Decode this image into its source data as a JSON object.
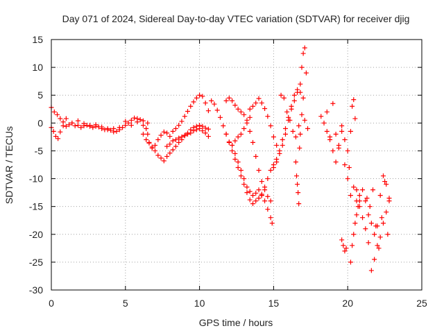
{
  "chart_data": {
    "type": "scatter",
    "title": "Day 071 of 2024, Sidereal Day-to-day VTEC variation (SDTVAR) for receiver djig",
    "xlabel": "GPS time / hours",
    "ylabel": "SDTVAR / TECUs",
    "xlim": [
      0,
      25
    ],
    "ylim": [
      -30,
      15
    ],
    "x_ticks": [
      "0",
      "5",
      "10",
      "15",
      "20",
      "25"
    ],
    "y_ticks": [
      "15",
      "10",
      "5",
      "0",
      "-5",
      "-10",
      "-15",
      "-20",
      "-25",
      "-30"
    ],
    "grid": true,
    "legend": "none",
    "marker": "+",
    "color": "#ff0000",
    "series": [
      {
        "x": [
          0.0,
          0.2,
          0.4,
          0.6,
          0.8,
          1.0,
          1.2,
          1.4,
          1.6,
          1.8,
          2.0,
          2.2,
          2.4,
          2.6,
          2.8,
          3.0,
          3.2,
          3.4,
          3.6,
          3.8,
          4.0,
          4.2,
          4.4,
          4.6,
          4.8,
          5.0,
          5.2,
          5.4,
          5.6,
          5.8,
          6.0,
          6.2,
          6.4,
          6.5,
          6.6,
          6.8,
          7.0,
          7.2,
          7.4,
          7.6,
          7.8,
          8.0,
          8.2,
          8.4,
          8.6,
          8.8,
          9.0,
          9.2,
          9.4,
          9.6,
          9.8,
          10.0,
          10.2,
          10.4,
          10.6
        ],
        "y": [
          2.8,
          2.0,
          1.5,
          0.8,
          0.2,
          -0.6,
          -0.3,
          0.0,
          -0.5,
          -0.4,
          -0.8,
          -0.5,
          -0.4,
          -0.6,
          -0.8,
          -0.6,
          -0.7,
          -1.0,
          -1.2,
          -1.0,
          -1.3,
          -1.6,
          -1.5,
          -1.2,
          -0.8,
          -0.4,
          0.0,
          0.5,
          0.9,
          0.8,
          0.6,
          0.4,
          -1.0,
          -2.0,
          -3.5,
          -4.5,
          -4.0,
          -3.0,
          -2.2,
          -1.6,
          -1.8,
          -2.4,
          -1.5,
          -1.0,
          -0.4,
          0.3,
          1.2,
          2.1,
          3.0,
          3.8,
          4.5,
          5.0,
          4.8,
          3.6,
          2.2
        ]
      },
      {
        "x": [
          0.0,
          0.15,
          0.3,
          0.45,
          0.6,
          0.8,
          1.0,
          1.4,
          1.8,
          2.2,
          2.6,
          3.0,
          3.4,
          3.8,
          4.2,
          4.6,
          5.0,
          5.4,
          5.8,
          6.2,
          6.5
        ],
        "y": [
          -0.8,
          -1.5,
          -2.4,
          -2.8,
          -1.6,
          -0.5,
          0.8,
          0.0,
          0.4,
          -0.1,
          -0.4,
          -0.3,
          -0.7,
          -1.2,
          -1.0,
          -0.8,
          0.3,
          -0.4,
          0.2,
          -0.4,
          0.0
        ]
      },
      {
        "x": [
          6.2,
          6.4,
          6.6,
          6.8,
          7.0,
          7.2,
          7.4,
          7.6,
          7.8,
          8.0,
          8.2,
          8.4,
          8.6,
          8.8,
          9.0,
          9.2,
          9.4,
          9.6,
          9.8,
          10.0,
          10.2,
          10.4,
          10.6
        ],
        "y": [
          -2.0,
          -3.0,
          -3.6,
          -4.3,
          -5.0,
          -5.8,
          -6.3,
          -6.8,
          -6.0,
          -5.4,
          -4.8,
          -4.2,
          -3.5,
          -3.0,
          -2.3,
          -1.8,
          -1.2,
          -0.8,
          -0.6,
          -0.4,
          -0.6,
          -0.9,
          -1.1
        ]
      },
      {
        "x": [
          7.8,
          8.0,
          8.2,
          8.4,
          8.6,
          8.8,
          9.0,
          9.2,
          9.4,
          9.6,
          9.8,
          10.0,
          10.2,
          10.4,
          10.6
        ],
        "y": [
          -4.2,
          -3.8,
          -3.2,
          -3.0,
          -2.7,
          -2.5,
          -2.2,
          -2.0,
          -1.8,
          -1.4,
          -1.2,
          -1.0,
          -1.4,
          -1.8,
          -2.4
        ]
      },
      {
        "x": [
          10.8,
          11.0,
          11.2,
          11.4,
          11.6,
          11.8,
          12.0,
          12.2,
          12.4,
          12.6,
          12.8,
          13.0,
          13.2,
          13.4,
          13.6,
          13.8,
          14.0,
          14.2,
          14.4,
          14.6,
          14.8,
          14.9
        ],
        "y": [
          4.0,
          3.4,
          2.3,
          1.0,
          -0.5,
          -2.0,
          -3.4,
          -4.0,
          -5.5,
          -7.0,
          -8.5,
          -10.0,
          -11.5,
          -12.3,
          -13.0,
          -12.6,
          -12.0,
          -12.8,
          -14.0,
          -15.5,
          -17.0,
          -18.0
        ]
      },
      {
        "x": [
          11.8,
          12.0,
          12.2,
          12.4,
          12.6,
          12.8,
          13.0,
          13.2,
          13.4,
          13.6,
          13.8,
          14.0,
          14.2
        ],
        "y": [
          -2.0,
          -3.5,
          -5.0,
          -6.5,
          -8.0,
          -9.5,
          -11.0,
          -12.5,
          -13.8,
          -14.5,
          -14.0,
          -13.5,
          -13.0
        ]
      },
      {
        "x": [
          11.8,
          12.0,
          12.2,
          12.4,
          12.6,
          12.8,
          13.0,
          13.2,
          13.4,
          13.6,
          13.8,
          14.0,
          14.2,
          14.4,
          14.6,
          14.8
        ],
        "y": [
          4.0,
          4.5,
          4.0,
          3.2,
          2.5,
          2.0,
          1.5,
          0.5,
          -1.5,
          -3.5,
          -6.0,
          -8.5,
          -10.5,
          -12.0,
          -13.2,
          -14.0
        ]
      },
      {
        "x": [
          12.2,
          12.4,
          12.6,
          12.8,
          13.0,
          13.2,
          13.4
        ],
        "y": [
          -4.0,
          -3.2,
          -2.5,
          -2.0,
          -1.0,
          0.0,
          1.0
        ]
      },
      {
        "x": [
          13.4,
          13.6,
          13.8,
          14.0,
          14.2,
          14.4,
          14.6,
          14.8,
          15.0,
          15.2
        ],
        "y": [
          2.5,
          3.0,
          3.6,
          4.4,
          3.6,
          2.6,
          1.2,
          -0.5,
          -2.5,
          -4.0
        ]
      },
      {
        "x": [
          14.2,
          14.4,
          14.6,
          14.8,
          15.0,
          15.2,
          15.4,
          15.6,
          15.8,
          16.0,
          16.2,
          16.4,
          16.6,
          16.8,
          17.0
        ],
        "y": [
          -13.0,
          -11.5,
          -10.0,
          -8.5,
          -7.5,
          -6.5,
          -5.0,
          -3.0,
          -1.0,
          1.0,
          3.0,
          5.0,
          6.0,
          5.5,
          4.5
        ]
      },
      {
        "x": [
          15.0,
          15.2,
          15.4,
          15.6,
          15.8,
          16.0,
          16.2,
          16.4,
          16.6,
          16.8,
          16.9,
          17.0,
          17.1,
          17.2
        ],
        "y": [
          -8.0,
          -7.0,
          -5.5,
          -4.0,
          -2.0,
          0.5,
          2.5,
          4.0,
          5.5,
          7.0,
          10.0,
          12.5,
          13.5,
          9.0
        ]
      },
      {
        "x": [
          15.5,
          15.7,
          15.9,
          16.1,
          16.3,
          16.5,
          16.7,
          16.9,
          17.1,
          17.3
        ],
        "y": [
          5.0,
          4.5,
          2.0,
          0.5,
          -1.5,
          -2.5,
          -0.5,
          1.5,
          0.5,
          -1.0
        ]
      },
      {
        "x": [
          16.5,
          16.55,
          16.6,
          16.65,
          16.7,
          16.75,
          16.8
        ],
        "y": [
          -7.0,
          -9.5,
          -11.0,
          -12.5,
          -14.5,
          -4.5,
          -2.0
        ]
      },
      {
        "x": [
          18.2,
          18.4,
          18.6,
          18.8,
          19.0,
          19.2,
          19.4,
          19.6,
          19.8,
          20.0,
          20.1,
          20.2,
          20.3,
          20.4,
          20.5,
          20.6,
          20.8
        ],
        "y": [
          1.2,
          0.0,
          -1.5,
          -3.0,
          3.5,
          -2.0,
          -4.5,
          -0.5,
          -3.0,
          -5.0,
          -8.0,
          -1.5,
          3.0,
          4.2,
          0.8,
          -12.0,
          -13.0
        ]
      },
      {
        "x": [
          18.6,
          18.8,
          19.0,
          19.2,
          19.4,
          19.6,
          19.8,
          20.0,
          20.2,
          20.4,
          20.6
        ],
        "y": [
          2.0,
          -2.5,
          -5.0,
          -7.0,
          -4.0,
          -1.5,
          -7.5,
          -10.0,
          -13.0,
          -11.5,
          -14.0
        ]
      },
      {
        "x": [
          19.6,
          19.7,
          19.8,
          19.9
        ],
        "y": [
          -21.0,
          -22.0,
          -23.0,
          -22.5
        ]
      },
      {
        "x": [
          20.2,
          20.3,
          20.4,
          20.5,
          20.6,
          20.7,
          20.8
        ],
        "y": [
          -25.0,
          -22.0,
          -20.0,
          -18.0,
          -16.5,
          -15.0,
          -14.0
        ]
      },
      {
        "x": [
          20.8,
          21.0,
          21.2,
          21.4,
          21.6,
          21.8,
          22.0,
          22.2,
          22.4,
          22.6,
          22.8
        ],
        "y": [
          -15.0,
          -17.0,
          -19.0,
          -21.5,
          -26.5,
          -24.5,
          -22.0,
          -20.5,
          -18.0,
          -16.0,
          -14.0
        ]
      },
      {
        "x": [
          21.0,
          21.2,
          21.4,
          21.6,
          21.8,
          22.0,
          22.2,
          22.4,
          22.6,
          22.8
        ],
        "y": [
          -12.0,
          -14.0,
          -16.5,
          -18.0,
          -20.0,
          -18.5,
          -13.0,
          -9.5,
          -11.0,
          -13.5
        ]
      },
      {
        "x": [
          21.3,
          21.5,
          21.7,
          21.9,
          22.1,
          22.3,
          22.5,
          22.7
        ],
        "y": [
          -13.5,
          -15.0,
          -12.0,
          -18.5,
          -22.5,
          -17.0,
          -10.5,
          -20.0
        ]
      }
    ]
  }
}
